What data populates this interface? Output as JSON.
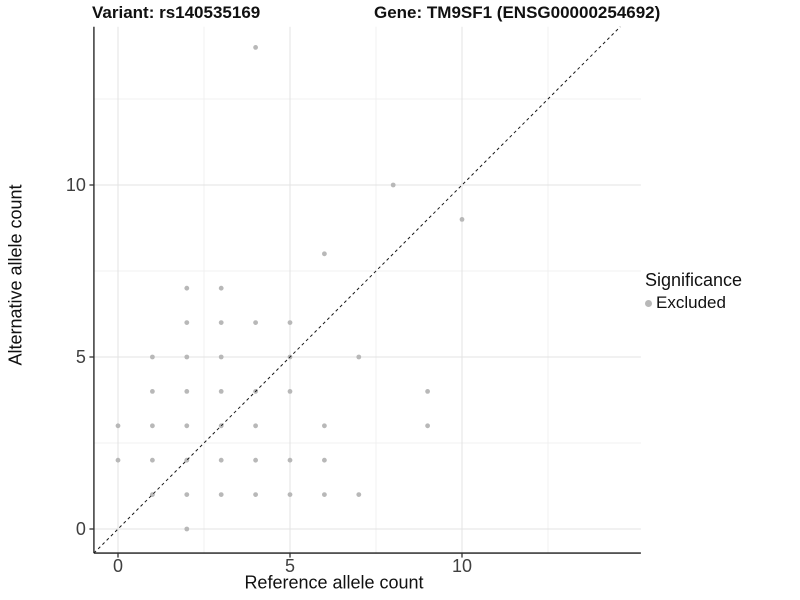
{
  "chart_data": {
    "type": "scatter",
    "titles": {
      "left": "Variant: rs140535169",
      "right": "Gene: TM9SF1 (ENSG00000254692)"
    },
    "xlabel": "Reference allele count",
    "ylabel": "Alternative allele count",
    "x_ticks": [
      0,
      5,
      10
    ],
    "y_ticks": [
      0,
      5,
      10
    ],
    "xlim": [
      -0.7,
      15.2
    ],
    "ylim": [
      -0.7,
      14.6
    ],
    "grid": "major and minor gridlines, light gray on white panel",
    "legend": {
      "title": "Significance",
      "position": "right",
      "items": [
        {
          "label": "Excluded",
          "color": "#b8b8b8"
        }
      ]
    },
    "reference_line": {
      "type": "identity (y = x)",
      "style": "dashed",
      "color": "#1a1a1a"
    },
    "series": [
      {
        "name": "Excluded",
        "color": "#b8b8b8",
        "marker": "circle",
        "points": [
          [
            4,
            14
          ],
          [
            8,
            10
          ],
          [
            10,
            9
          ],
          [
            6,
            8
          ],
          [
            2,
            7
          ],
          [
            3,
            7
          ],
          [
            2,
            6
          ],
          [
            3,
            6
          ],
          [
            4,
            6
          ],
          [
            5,
            6
          ],
          [
            1,
            5
          ],
          [
            2,
            5
          ],
          [
            3,
            5
          ],
          [
            5,
            5
          ],
          [
            7,
            5
          ],
          [
            1,
            4
          ],
          [
            2,
            4
          ],
          [
            3,
            4
          ],
          [
            4,
            4
          ],
          [
            5,
            4
          ],
          [
            9,
            4
          ],
          [
            0,
            3
          ],
          [
            1,
            3
          ],
          [
            2,
            3
          ],
          [
            3,
            3
          ],
          [
            4,
            3
          ],
          [
            6,
            3
          ],
          [
            9,
            3
          ],
          [
            0,
            2
          ],
          [
            1,
            2
          ],
          [
            2,
            2
          ],
          [
            3,
            2
          ],
          [
            4,
            2
          ],
          [
            5,
            2
          ],
          [
            6,
            2
          ],
          [
            1,
            1
          ],
          [
            2,
            1
          ],
          [
            3,
            1
          ],
          [
            4,
            1
          ],
          [
            5,
            1
          ],
          [
            6,
            1
          ],
          [
            7,
            1
          ],
          [
            2,
            0
          ]
        ]
      }
    ]
  }
}
